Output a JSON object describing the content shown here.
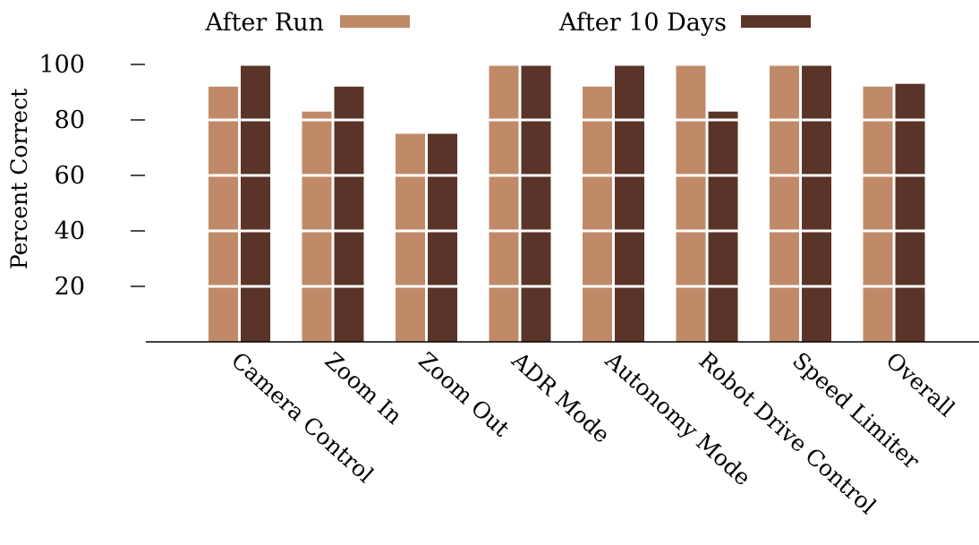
{
  "chart_data": {
    "type": "bar",
    "title": "",
    "xlabel": "",
    "ylabel": "Percent Correct",
    "ylim": [
      0,
      100
    ],
    "yticks": [
      20,
      40,
      60,
      80,
      100
    ],
    "grid": "horizontal white lines over bars",
    "legend_position": "top",
    "categories": [
      "Camera Control",
      "Zoom In",
      "Zoom Out",
      "ADR Mode",
      "Autonomy Mode",
      "Robot Drive Control",
      "Speed Limiter",
      "Overall"
    ],
    "series": [
      {
        "name": "After Run",
        "color": "#c08a69",
        "values": [
          92,
          83,
          75,
          100,
          92,
          100,
          100,
          92
        ]
      },
      {
        "name": "After 10 Days",
        "color": "#5a3428",
        "values": [
          100,
          92,
          75,
          100,
          100,
          83,
          100,
          93
        ]
      }
    ]
  }
}
